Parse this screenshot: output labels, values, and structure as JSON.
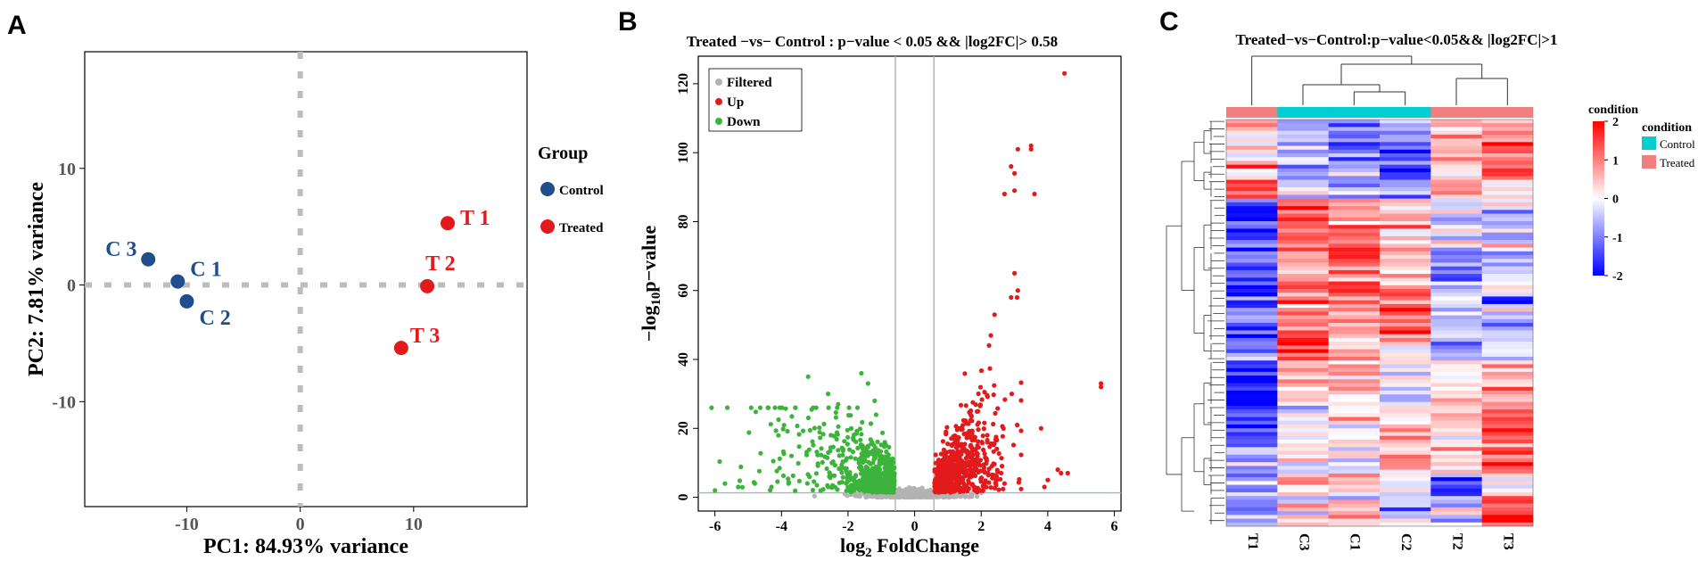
{
  "chart_data": [
    {
      "panel": "A",
      "type": "scatter",
      "title": "",
      "xlabel": "PC1: 84.93% variance",
      "ylabel": "PC2: 7.81% variance",
      "xlim": [
        -19,
        20
      ],
      "ylim": [
        -19,
        20
      ],
      "xticks": [
        "-10",
        "0",
        "10"
      ],
      "xtick_values": [
        -10,
        0,
        10
      ],
      "yticks": [
        "10",
        "0",
        "-10"
      ],
      "ytick_values": [
        10,
        0,
        -10
      ],
      "legend_title": "Group",
      "legend_position": "right",
      "series": [
        {
          "name": "Control",
          "color": "#1f4e8c",
          "points": [
            {
              "label": "C 3",
              "x": -13.4,
              "y": 2.2
            },
            {
              "label": "C 1",
              "x": -10.8,
              "y": 0.3
            },
            {
              "label": "C 2",
              "x": -10.0,
              "y": -1.4
            }
          ]
        },
        {
          "name": "Treated",
          "color": "#e31a1c",
          "points": [
            {
              "label": "T 1",
              "x": 13.0,
              "y": 5.3
            },
            {
              "label": "T 2",
              "x": 11.2,
              "y": -0.1
            },
            {
              "label": "T 3",
              "x": 8.9,
              "y": -5.4
            }
          ]
        }
      ]
    },
    {
      "panel": "B",
      "type": "scatter",
      "title": "Treated −vs− Control : p−value < 0.05 && |log2FC|> 0.58",
      "xlabel_main": "log",
      "xlabel_sub": "2",
      "xlabel_rest": " FoldChange",
      "ylabel_main": "−log",
      "ylabel_sub": "10",
      "ylabel_rest": "p−value",
      "xlim": [
        -6.5,
        6.2
      ],
      "ylim": [
        -4,
        128
      ],
      "xticks": [
        "-6",
        "-4",
        "-2",
        "0",
        "2",
        "4",
        "6"
      ],
      "xtick_values": [
        -6,
        -4,
        -2,
        0,
        2,
        4,
        6
      ],
      "yticks": [
        "0",
        "20",
        "40",
        "60",
        "80",
        "100",
        "120"
      ],
      "ytick_values": [
        0,
        20,
        40,
        60,
        80,
        100,
        120
      ],
      "fc_thresholds": [
        -0.58,
        0.58
      ],
      "p_threshold_log": 1.3,
      "legend_position": "top-left",
      "legend": [
        {
          "label": "Filtered",
          "color": "#b3b3b3"
        },
        {
          "label": "Up",
          "color": "#e31a1c"
        },
        {
          "label": "Down",
          "color": "#3cb43c"
        }
      ],
      "up_outliers": [
        [
          4.5,
          123
        ],
        [
          3.5,
          102
        ],
        [
          3.5,
          101
        ],
        [
          3.1,
          101
        ],
        [
          2.9,
          96
        ],
        [
          3.0,
          94
        ],
        [
          3.6,
          88
        ],
        [
          2.7,
          88
        ],
        [
          3.0,
          89
        ],
        [
          3.0,
          65
        ],
        [
          3.1,
          60
        ],
        [
          2.4,
          53
        ],
        [
          2.9,
          58
        ],
        [
          5.6,
          33
        ],
        [
          5.6,
          32
        ],
        [
          3.8,
          20
        ],
        [
          4.3,
          8
        ],
        [
          4.4,
          7
        ],
        [
          4.6,
          7
        ],
        [
          4.0,
          5
        ],
        [
          3.9,
          3
        ],
        [
          2.6,
          7
        ],
        [
          2.7,
          4
        ],
        [
          2.1,
          4
        ]
      ],
      "down_outliers": [
        [
          -3.2,
          35
        ],
        [
          -1.6,
          36
        ],
        [
          -1.4,
          33
        ],
        [
          -2.6,
          30
        ],
        [
          -1.2,
          28
        ],
        [
          -2.3,
          27
        ],
        [
          -3.7,
          12
        ],
        [
          -5.7,
          4
        ],
        [
          -5.3,
          3
        ],
        [
          -6.0,
          2
        ],
        [
          -4.8,
          4
        ],
        [
          -4.3,
          3
        ]
      ]
    },
    {
      "panel": "C",
      "type": "heatmap",
      "title": "Treated−vs−Control:p−value<0.05&& |log2FC|>1",
      "columns": [
        "T1",
        "C3",
        "C1",
        "C2",
        "T2",
        "T3"
      ],
      "column_condition": [
        "Treated",
        "Control",
        "Control",
        "Control",
        "Treated",
        "Treated"
      ],
      "annotation_label": "condition",
      "legend_title": "condition",
      "legend": [
        {
          "label": "Control",
          "color": "#00ced1"
        },
        {
          "label": "Treated",
          "color": "#f08080"
        }
      ],
      "colorbar_title": "condition",
      "colorbar_range": [
        -2,
        2
      ],
      "colorbar_ticks": [
        "2",
        "1",
        "0",
        "-1",
        "-2"
      ],
      "colorbar_tick_values": [
        2,
        1,
        0,
        -1,
        -2
      ],
      "colors": {
        "low": "#0000ff",
        "mid": "#ffffff",
        "high": "#ff0000"
      },
      "row_blocks": [
        {
          "rows": 6,
          "values": [
            0.4,
            -0.7,
            -0.8,
            -1.1,
            0.6,
            1.0
          ]
        },
        {
          "rows": 6,
          "values": [
            0.1,
            -0.3,
            -0.8,
            -1.2,
            0.5,
            1.6
          ]
        },
        {
          "rows": 4,
          "values": [
            0.6,
            -0.8,
            -0.6,
            -1.3,
            0.3,
            1.4
          ]
        },
        {
          "rows": 5,
          "values": [
            1.8,
            -0.6,
            -0.8,
            -0.9,
            0.9,
            0.3
          ]
        },
        {
          "rows": 14,
          "values": [
            -1.4,
            1.3,
            1.1,
            0.6,
            -0.4,
            -0.3
          ]
        },
        {
          "rows": 10,
          "values": [
            -1.2,
            0.9,
            1.1,
            0.8,
            -0.9,
            -0.5
          ]
        },
        {
          "rows": 14,
          "values": [
            -1.3,
            1.0,
            1.0,
            1.1,
            -0.5,
            -0.8
          ]
        },
        {
          "rows": 5,
          "values": [
            -1.0,
            1.4,
            0.6,
            0.2,
            -0.9,
            -0.6
          ]
        },
        {
          "rows": 12,
          "values": [
            -2.0,
            0.5,
            0.4,
            0.1,
            0.3,
            0.6
          ]
        },
        {
          "rows": 10,
          "values": [
            -1.6,
            -0.2,
            0.2,
            0.2,
            0.5,
            1.2
          ]
        },
        {
          "rows": 8,
          "values": [
            -1.0,
            -0.4,
            0.0,
            0.5,
            0.4,
            1.4
          ]
        },
        {
          "rows": 6,
          "values": [
            -0.7,
            0.6,
            0.5,
            0.0,
            -1.6,
            0.5
          ]
        },
        {
          "rows": 8,
          "values": [
            -0.8,
            0.2,
            0.4,
            -0.4,
            -0.3,
            1.6
          ]
        }
      ]
    }
  ],
  "panels": {
    "a": "A",
    "b": "B",
    "c": "C"
  },
  "colors": {
    "axis": "#000000",
    "grid_dash": "#bdbdbd",
    "threshold": "#a9b4b8",
    "filtered": "#b3b3b3",
    "up": "#e31a1c",
    "down": "#3cb43c"
  }
}
